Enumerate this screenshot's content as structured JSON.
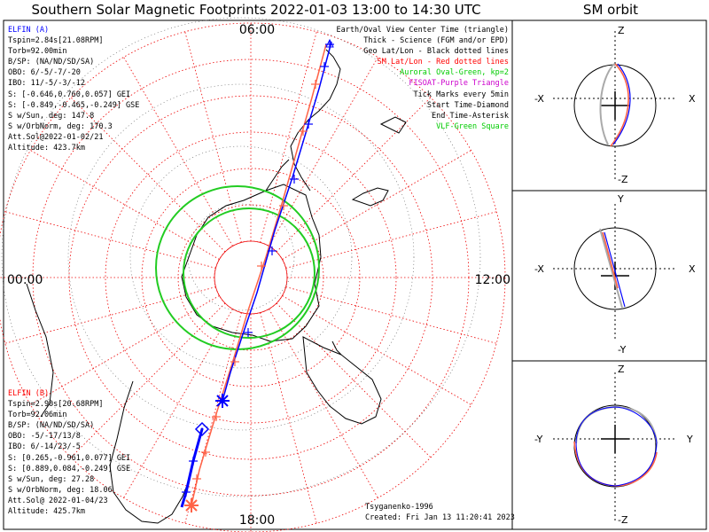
{
  "title": "Southern Solar Magnetic Footprints 2022-01-03 13:00 to 14:30 UTC",
  "orbit_title": "SM orbit",
  "map": {
    "local_time_labels": {
      "top": "06:00",
      "left": "00:00",
      "right": "12:00",
      "bottom": "18:00"
    },
    "colors": {
      "elfin_a": "#0000ff",
      "elfin_b": "#ff6347",
      "auroral_oval": "#22cc22",
      "grid": "#ff0000",
      "geo": "#000000"
    }
  },
  "elfin_a": {
    "name": "ELFIN (A)",
    "lines": [
      "Tspin=2.84s[21.08RPM]",
      "Torb=92.00min",
      "B/SP: (NA/ND/SD/SA)",
      "OBO: 6/-5/-7/-20",
      "IBO: 11/-5/-3/-12",
      "S: [-0.646,0.760,0.057] GEI",
      "S: [-0.849,-0.465,-0.249] GSE",
      "S w/Sun, deg: 147.8",
      "S w/OrbNorm, deg: 170.3",
      "Att.Sol@2022-01-02/21",
      "Altitude: 423.7km"
    ]
  },
  "elfin_b": {
    "name": "ELFIN (B)",
    "lines": [
      "Tspin=2.90s[20.68RPM]",
      "Torb=92.06min",
      "B/SP: (NA/ND/SD/SA)",
      "OBO: -5/-17/13/8",
      "IBO: 6/-14/23/-5",
      "S: [0.265,-0.961,0.077] GEI",
      "S: [0.889,0.084,-0.249] GSE",
      "S w/Sun, deg: 27.28",
      "S w/OrbNorm, deg: 18.06",
      "Att.Sol@ 2022-01-04/23",
      "Altitude: 425.7km"
    ]
  },
  "legend": [
    {
      "text": "Earth/Oval View Center Time (triangle)",
      "color": "#000000"
    },
    {
      "text": "Thick - Science (FGM and/or EPD)",
      "color": "#000000"
    },
    {
      "text": "Geo Lat/Lon - Black dotted lines",
      "color": "#000000"
    },
    {
      "text": "SM Lat/Lon - Red dotted lines",
      "color": "#ff0000"
    },
    {
      "text": "Auroral Oval-Green, kp=2",
      "color": "#00cc00"
    },
    {
      "text": "FISOAT-Purple Triangle",
      "color": "#cc00cc"
    },
    {
      "text": "Tick Marks every 5min",
      "color": "#000000"
    },
    {
      "text": "Start Time-Diamond",
      "color": "#000000"
    },
    {
      "text": "End Time-Asterisk",
      "color": "#000000"
    },
    {
      "text": "VLF-Green Square",
      "color": "#00cc00"
    }
  ],
  "credit": {
    "line1": "Tsyganenko-1996",
    "line2": "Created: Fri Jan 13 11:20:41 2023"
  },
  "orbit_panels": [
    {
      "top": "Z",
      "bottom": "-Z",
      "left": "-X",
      "right": "X"
    },
    {
      "top": "Y",
      "bottom": "-Y",
      "left": "-X",
      "right": "X"
    },
    {
      "top": "Z",
      "bottom": "-Z",
      "left": "-Y",
      "right": "Y"
    }
  ]
}
